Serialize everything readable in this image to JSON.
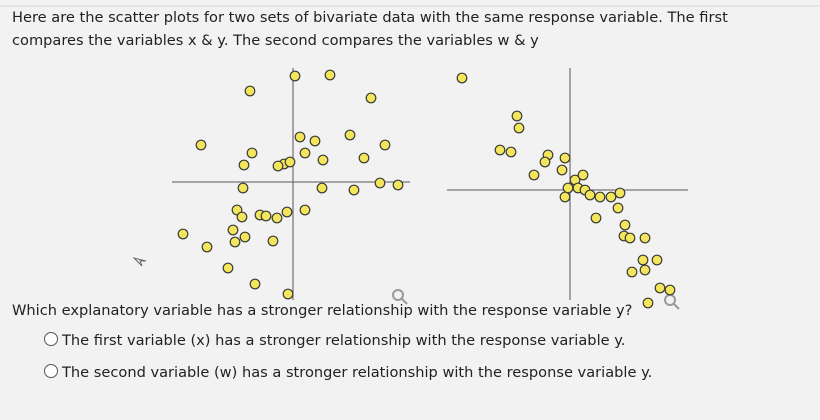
{
  "intro": [
    "Here are the scatter plots for two sets of bivariate data with the same response variable. The first",
    "compares the variables x & y. The second compares the variables w & y"
  ],
  "question": "Which explanatory variable has a stronger relationship with the response variable y?",
  "options": [
    "The first variable (x) has a stronger relationship with the response variable y.",
    "The second variable (w) has a stronger relationship with the response variable y."
  ],
  "chart_data": [
    {
      "type": "scatter",
      "color": "#f3e65a",
      "xlim": [
        -12.1,
        11.7
      ],
      "ylim": [
        -12,
        11.5
      ],
      "x": [
        0.2,
        3.7,
        -4.3,
        7.8,
        -9.2,
        -4.1,
        -4.9,
        0.7,
        2.2,
        1.2,
        3,
        5.7,
        9.2,
        7.1,
        -0.9,
        -0.3,
        -1.5,
        -5,
        2.9,
        6.1,
        8.7,
        10.5,
        -5.6,
        -5.1,
        -3.3,
        -2.7,
        -1.6,
        -0.6,
        1.2,
        -6,
        -4.8,
        -5.8,
        -11,
        -8.6,
        -2,
        -6.5,
        -3.8,
        -0.5
      ],
      "y": [
        10.6,
        10.7,
        9.1,
        8.4,
        3.7,
        2.9,
        1.7,
        4.5,
        4.1,
        2.9,
        2.2,
        4.7,
        3.7,
        2.4,
        1.8,
        2,
        1.6,
        -0.6,
        -0.6,
        -0.8,
        -0.1,
        -0.3,
        -2.8,
        -3.5,
        -3.3,
        -3.4,
        -3.6,
        -3,
        -2.8,
        -4.8,
        -5.5,
        -6,
        -5.2,
        -6.5,
        -5.9,
        -8.6,
        -10.2,
        -11.2
      ]
    },
    {
      "type": "scatter",
      "color": "#f3e65a",
      "xlim": [
        -12.3,
        11.8
      ],
      "ylim": [
        -12,
        12.5
      ],
      "x": [
        -10.8,
        -5.3,
        -5.1,
        -7,
        -5.9,
        -2.2,
        -2.5,
        -0.5,
        -0.8,
        -3.6,
        0.5,
        1.3,
        -0.2,
        0.8,
        1.5,
        2,
        3,
        -0.5,
        4.1,
        5,
        4.8,
        2.6,
        5.5,
        5.4,
        6,
        7.5,
        8.7,
        7.3,
        7.5,
        6.2,
        9,
        10,
        7.8
      ],
      "y": [
        11.2,
        7.4,
        6.2,
        4,
        3.8,
        3.5,
        2.8,
        3.2,
        2,
        1.5,
        1,
        1.5,
        0.2,
        0.2,
        0,
        -0.5,
        -0.7,
        -0.7,
        -0.7,
        -0.3,
        -1.8,
        -2.8,
        -3.5,
        -4.6,
        -4.8,
        -4.8,
        -7,
        -7,
        -8,
        -8.2,
        -9.8,
        -10,
        -11.3
      ]
    }
  ]
}
